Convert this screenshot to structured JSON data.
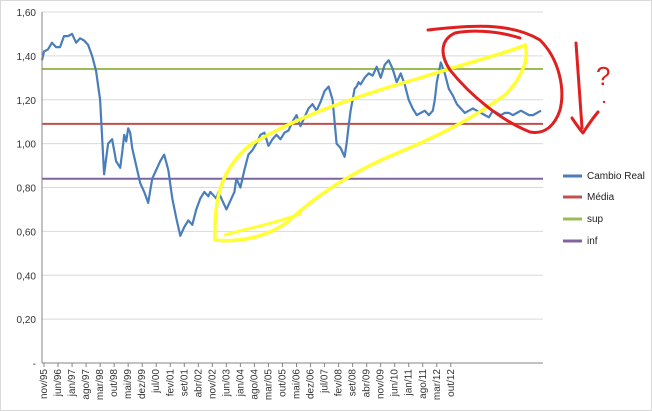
{
  "chart_data": {
    "type": "line",
    "title": "",
    "xlabel": "",
    "ylabel": "",
    "ylim": [
      0,
      1.6
    ],
    "y_ticks": [
      {
        "value": 1.6,
        "label": "1,60"
      },
      {
        "value": 1.4,
        "label": "1,40"
      },
      {
        "value": 1.2,
        "label": "1,20"
      },
      {
        "value": 1.0,
        "label": "1,00"
      },
      {
        "value": 0.8,
        "label": "0,80"
      },
      {
        "value": 0.6,
        "label": "0,60"
      },
      {
        "value": 0.4,
        "label": "0,40"
      },
      {
        "value": 0.2,
        "label": "0,20"
      },
      {
        "value": 0.0,
        "label": "-"
      }
    ],
    "x_tick_labels": [
      "nov/95",
      "jun/96",
      "jan/97",
      "ago/97",
      "mar/98",
      "out/98",
      "mai/99",
      "dez/99",
      "jul/00",
      "fev/01",
      "set/01",
      "abr/02",
      "nov/02",
      "jun/03",
      "jan/04",
      "ago/04",
      "mar/05",
      "out/05",
      "mai/06",
      "dez/06",
      "jul/07",
      "fev/08",
      "set/08",
      "abr/09",
      "nov/09",
      "jun/10",
      "jan/11",
      "ago/11",
      "mar/12",
      "out/12"
    ],
    "x_range": [
      "nov/95",
      "dez/12"
    ],
    "grid": true,
    "legend_placement": "right",
    "series": [
      {
        "name": "Cambio Real",
        "color": "#4a7ebb",
        "x_months": [
          0,
          1,
          3,
          5,
          7,
          9,
          11,
          13,
          15,
          17,
          19,
          21,
          23,
          25,
          27,
          29,
          31,
          33,
          35,
          37,
          39,
          40,
          41,
          42,
          43,
          44,
          45,
          47,
          49,
          51,
          53,
          55,
          57,
          59,
          61,
          63,
          65,
          67,
          69,
          71,
          73,
          75,
          77,
          79,
          81,
          83,
          84,
          85,
          86,
          87,
          88,
          89,
          90,
          91,
          92,
          93,
          94,
          95,
          96,
          97,
          99,
          101,
          103,
          105,
          107,
          109,
          111,
          113,
          115,
          117,
          119,
          121,
          123,
          125,
          127,
          129,
          131,
          133,
          135,
          137,
          139,
          141,
          143,
          145,
          147,
          149,
          151,
          152,
          153,
          154,
          155,
          156,
          157,
          158,
          159,
          161,
          163,
          165,
          167,
          169,
          171,
          173,
          175,
          177,
          179,
          181,
          183,
          185,
          187,
          189,
          191,
          192,
          193,
          194,
          195,
          196,
          197,
          199,
          201,
          203,
          205,
          207,
          209,
          211,
          213,
          215,
          217,
          219,
          221,
          223,
          225,
          227,
          229,
          231,
          233,
          235,
          237,
          239,
          241,
          243,
          245,
          247,
          249
        ],
        "values": [
          1.38,
          1.42,
          1.43,
          1.46,
          1.44,
          1.44,
          1.49,
          1.49,
          1.5,
          1.46,
          1.48,
          1.47,
          1.45,
          1.4,
          1.33,
          1.2,
          0.86,
          1.0,
          1.02,
          0.92,
          0.89,
          0.96,
          1.04,
          1.01,
          1.07,
          1.05,
          0.98,
          0.9,
          0.82,
          0.78,
          0.73,
          0.84,
          0.88,
          0.92,
          0.95,
          0.88,
          0.75,
          0.66,
          0.58,
          0.62,
          0.65,
          0.63,
          0.7,
          0.75,
          0.78,
          0.76,
          0.78,
          0.77,
          0.76,
          0.75,
          0.78,
          0.76,
          0.74,
          0.72,
          0.7,
          0.72,
          0.74,
          0.76,
          0.78,
          0.84,
          0.8,
          0.88,
          0.95,
          0.97,
          1.0,
          1.04,
          1.05,
          0.99,
          1.02,
          1.04,
          1.02,
          1.05,
          1.06,
          1.1,
          1.13,
          1.08,
          1.12,
          1.16,
          1.18,
          1.15,
          1.19,
          1.24,
          1.26,
          1.2,
          1.0,
          0.98,
          0.94,
          1.0,
          1.08,
          1.15,
          1.2,
          1.25,
          1.26,
          1.28,
          1.27,
          1.3,
          1.32,
          1.31,
          1.35,
          1.3,
          1.36,
          1.38,
          1.34,
          1.28,
          1.32,
          1.27,
          1.2,
          1.16,
          1.13,
          1.14,
          1.15,
          1.14,
          1.13,
          1.14,
          1.15,
          1.2,
          1.28,
          1.37,
          1.32,
          1.25,
          1.22,
          1.18,
          1.16,
          1.14,
          1.15,
          1.16,
          1.15,
          1.14,
          1.13,
          1.12,
          1.15,
          1.14,
          1.13,
          1.14,
          1.14,
          1.13,
          1.14,
          1.15,
          1.14,
          1.13,
          1.13,
          1.14,
          1.15
        ]
      },
      {
        "name": "Média",
        "color": "#c0504d",
        "value": 1.09
      },
      {
        "name": "sup",
        "color": "#9bbb59",
        "value": 1.34
      },
      {
        "name": "inf",
        "color": "#8064a2",
        "value": 0.84
      }
    ],
    "annotations": {
      "yellow_ellipse_color": "#ffff33",
      "red_arrow_color": "#e02020",
      "question_mark": "?"
    }
  }
}
